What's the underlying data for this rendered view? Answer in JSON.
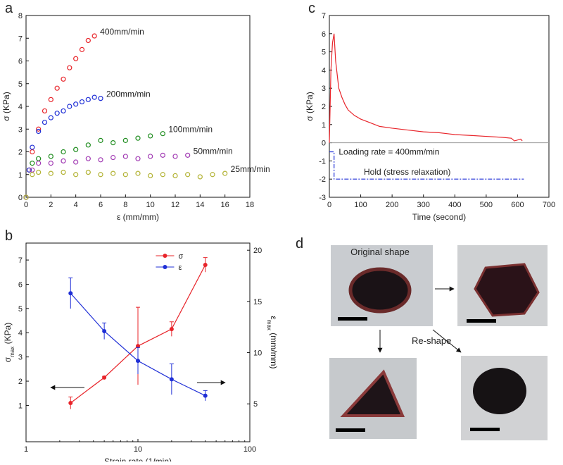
{
  "chart_data": [
    {
      "type": "scatter",
      "label": "a",
      "xlabel": "ε (mm/mm)",
      "ylabel": "σ (KPa)",
      "xlim": [
        0,
        18
      ],
      "ylim": [
        0,
        8
      ],
      "xticks": [
        0,
        2,
        4,
        6,
        8,
        10,
        12,
        14,
        16,
        18
      ],
      "yticks": [
        0,
        1,
        2,
        3,
        4,
        5,
        6,
        7,
        8
      ],
      "series": [
        {
          "name": "400mm/min",
          "color": "#e8242a",
          "x": [
            0,
            0.25,
            0.5,
            1,
            1.5,
            2,
            2.5,
            3,
            3.5,
            4,
            4.5,
            5,
            5.5
          ],
          "values": [
            0,
            1.2,
            2.0,
            3.0,
            3.8,
            4.3,
            4.8,
            5.2,
            5.7,
            6.1,
            6.5,
            6.9,
            7.1
          ]
        },
        {
          "name": "200mm/min",
          "color": "#1f2fd6",
          "x": [
            0,
            0.25,
            0.5,
            1,
            1.5,
            2,
            2.5,
            3,
            3.5,
            4,
            4.5,
            5,
            5.5,
            6
          ],
          "values": [
            0,
            1.2,
            2.2,
            2.9,
            3.3,
            3.5,
            3.7,
            3.8,
            4.0,
            4.1,
            4.2,
            4.3,
            4.4,
            4.35
          ]
        },
        {
          "name": "100mm/min",
          "color": "#1e8c1e",
          "x": [
            0,
            0.5,
            1,
            2,
            3,
            4,
            5,
            6,
            7,
            8,
            9,
            10,
            11
          ],
          "values": [
            0,
            1.5,
            1.7,
            1.8,
            2.0,
            2.1,
            2.3,
            2.5,
            2.4,
            2.5,
            2.6,
            2.7,
            2.8
          ]
        },
        {
          "name": "50mm/min",
          "color": "#a23cb4",
          "x": [
            0,
            0.5,
            1,
            2,
            3,
            4,
            5,
            6,
            7,
            8,
            9,
            10,
            11,
            12,
            13
          ],
          "values": [
            0,
            1.2,
            1.5,
            1.5,
            1.6,
            1.55,
            1.7,
            1.65,
            1.75,
            1.8,
            1.7,
            1.8,
            1.85,
            1.8,
            1.85
          ]
        },
        {
          "name": "25mm/min",
          "color": "#b2b232",
          "x": [
            0,
            0.5,
            1,
            2,
            3,
            4,
            5,
            6,
            7,
            8,
            9,
            10,
            11,
            12,
            13,
            14,
            15,
            16
          ],
          "values": [
            0,
            1.0,
            1.1,
            1.05,
            1.1,
            1.0,
            1.1,
            1.0,
            1.05,
            1.0,
            1.05,
            0.95,
            1.0,
            0.95,
            1.0,
            0.9,
            1.0,
            1.05
          ]
        }
      ]
    },
    {
      "type": "line",
      "label": "b",
      "xlabel": "Strain rate (1/min)",
      "ylabel": {
        "symbol": "σ",
        "sub": "max",
        "unit": " (KPa)"
      },
      "y2label": {
        "symbol": "ε",
        "sub": "max",
        "unit": " (mm/mm)"
      },
      "xscale": "log",
      "xlim": [
        1,
        100
      ],
      "xticks": [
        1,
        10,
        100
      ],
      "ylim": [
        -0.5,
        7.7
      ],
      "yticks": [
        1,
        2,
        3,
        4,
        5,
        6,
        7
      ],
      "y2lim": [
        1.3,
        20.7
      ],
      "y2ticks": [
        5,
        10,
        15,
        20
      ],
      "legend": "top",
      "markers": true,
      "series": [
        {
          "name": "σ",
          "color": "#e8242a",
          "x": [
            2.5,
            5,
            10,
            20,
            40
          ],
          "values": [
            1.1,
            2.15,
            3.45,
            4.15,
            6.8
          ],
          "errors": [
            0.25,
            0.05,
            1.6,
            0.3,
            0.3
          ]
        },
        {
          "name": "ε",
          "color": "#1f2fd6",
          "axis": "y2",
          "x": [
            2.5,
            5,
            10,
            20,
            40
          ],
          "values": [
            15.8,
            12.1,
            9.2,
            7.4,
            5.8
          ],
          "errors": [
            1.5,
            0.8,
            1.3,
            1.5,
            0.5
          ]
        }
      ]
    },
    {
      "type": "line",
      "label": "c",
      "xlabel": "Time (second)",
      "ylabel": "σ (KPa)",
      "xlim": [
        0,
        700
      ],
      "ylim": [
        -3,
        7
      ],
      "xticks": [
        0,
        100,
        200,
        300,
        400,
        500,
        600,
        700
      ],
      "yticks": [
        -3,
        -2,
        -1,
        0,
        1,
        2,
        3,
        4,
        5,
        6,
        7
      ],
      "hline": 0,
      "markers": false,
      "series": [
        {
          "color": "#e8242a",
          "x": [
            0,
            5,
            10,
            15,
            20,
            30,
            40,
            50,
            60,
            80,
            100,
            130,
            160,
            200,
            250,
            300,
            350,
            400,
            450,
            500,
            550,
            580,
            590,
            610,
            615
          ],
          "values": [
            0,
            4,
            5.5,
            6.0,
            4.5,
            3.0,
            2.5,
            2.1,
            1.8,
            1.5,
            1.3,
            1.1,
            0.9,
            0.8,
            0.7,
            0.6,
            0.55,
            0.45,
            0.4,
            0.35,
            0.3,
            0.25,
            0.1,
            0.2,
            0.1
          ]
        },
        {
          "color": "#1f2fd6",
          "dash": true,
          "x": [
            0,
            15,
            15,
            620
          ],
          "values": [
            -0.5,
            -0.5,
            -2,
            -2
          ]
        }
      ],
      "annotations": [
        {
          "text": "Loading rate = 400mm/min",
          "x": 30,
          "y": -0.5
        },
        {
          "text": "Hold (stress relaxation)",
          "x": 110,
          "y": -1.6
        }
      ]
    }
  ],
  "panel_d": {
    "label": "d",
    "captions": [
      "Original shape",
      "Re-shape"
    ]
  }
}
